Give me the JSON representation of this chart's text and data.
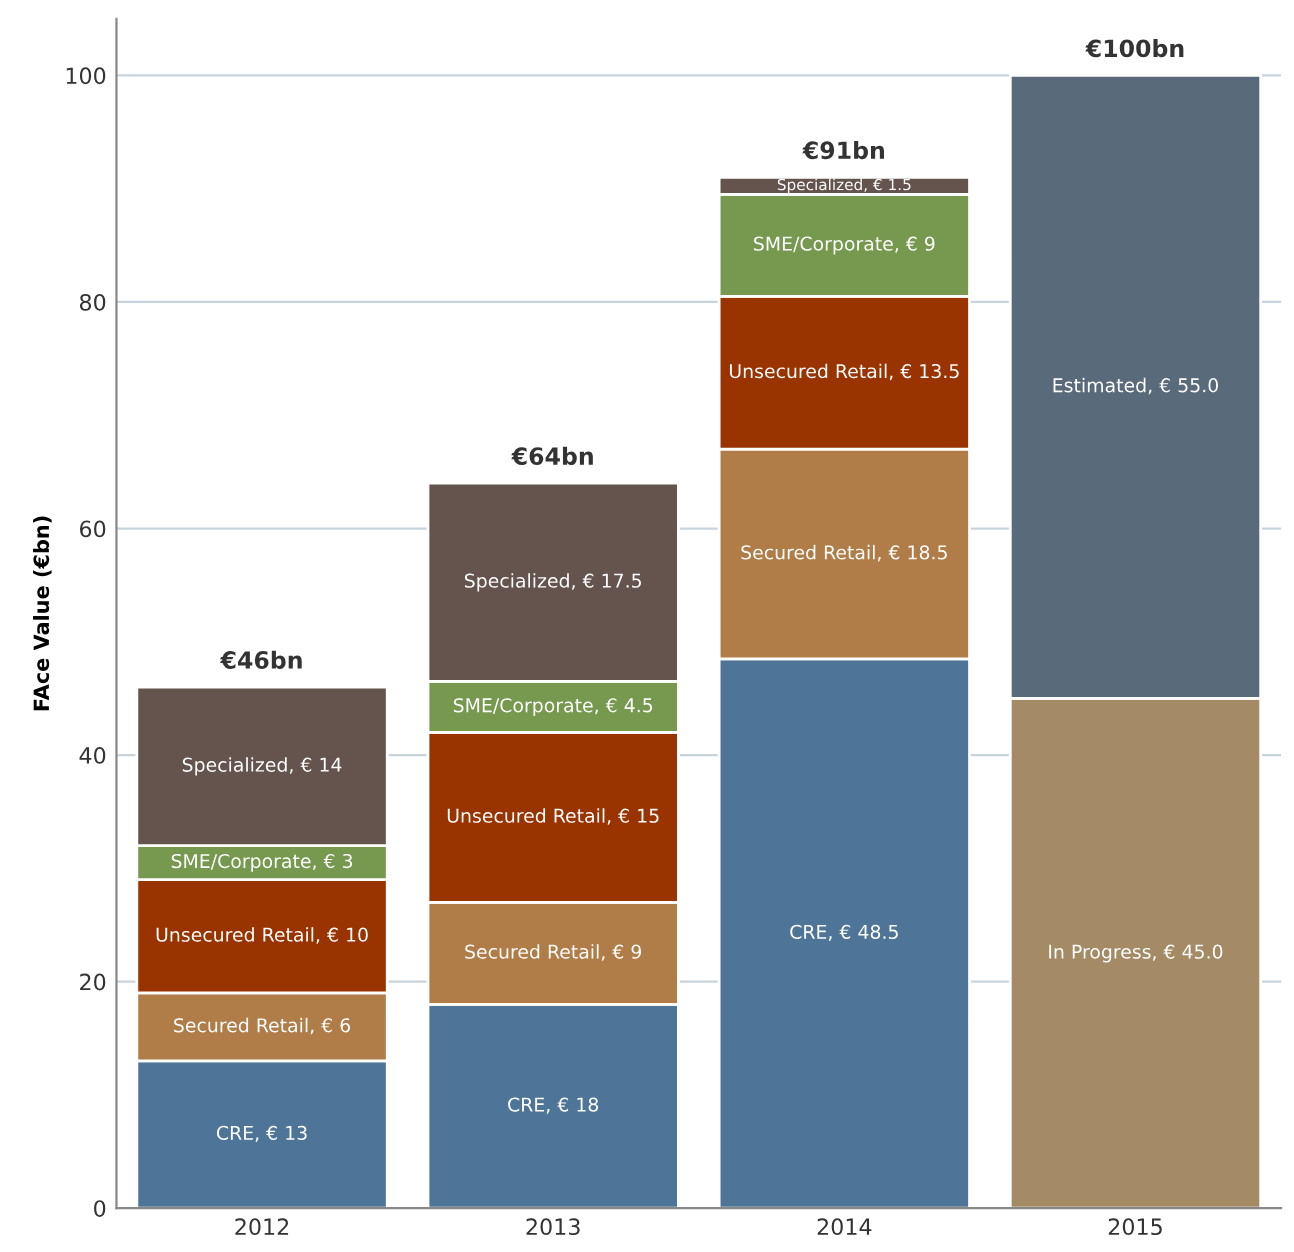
{
  "chart_data": {
    "type": "bar",
    "stacked": true,
    "ylabel": "FAce Value (€bn)",
    "categories": [
      "2012",
      "2013",
      "2014",
      "2015"
    ],
    "ylim": [
      0,
      105
    ],
    "yticks": [
      0,
      20,
      40,
      60,
      80,
      100
    ],
    "grid": "y",
    "legend": false,
    "series": [
      {
        "color": "#4e7598",
        "values": [
          13,
          18,
          48.5,
          null
        ],
        "value_labels": [
          "CRE, € 13",
          "CRE, € 18",
          "CRE, € 48.5",
          null
        ]
      },
      {
        "color": "#b07c47",
        "values": [
          6,
          9,
          18.5,
          null
        ],
        "value_labels": [
          "Secured Retail, € 6",
          "Secured Retail, € 9",
          "Secured Retail, € 18.5",
          null
        ]
      },
      {
        "color": "#993300",
        "values": [
          10,
          15,
          13.5,
          null
        ],
        "value_labels": [
          "Unsecured Retail, € 10",
          "Unsecured Retail, € 15",
          "Unsecured Retail, € 13.5",
          null
        ]
      },
      {
        "color": "#76994f",
        "values": [
          3,
          4.5,
          9,
          null
        ],
        "value_labels": [
          "SME/Corporate, € 3",
          "SME/Corporate, € 4.5",
          "SME/Corporate, € 9",
          null
        ]
      },
      {
        "color": "#65544d",
        "values": [
          14,
          17.5,
          1.5,
          null
        ],
        "value_labels": [
          "Specialized, € 14",
          "Specialized, € 17.5",
          "Specialized, € 1.5",
          null
        ]
      },
      {
        "color": "#a48a65",
        "values": [
          null,
          null,
          null,
          45
        ],
        "value_labels": [
          null,
          null,
          null,
          "In Progress, € 45.0"
        ]
      },
      {
        "color": "#596a7a",
        "values": [
          null,
          null,
          null,
          55
        ],
        "value_labels": [
          null,
          null,
          null,
          "Estimated, € 55.0"
        ]
      }
    ],
    "totals": [
      "€46bn",
      "€64bn",
      "€91bn",
      "€100bn"
    ]
  }
}
